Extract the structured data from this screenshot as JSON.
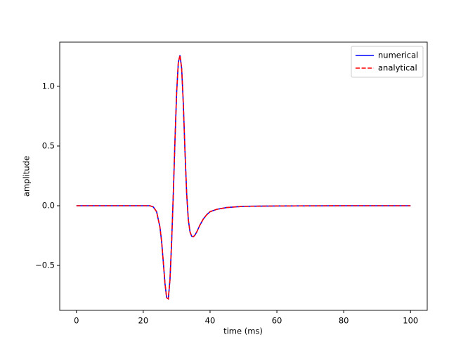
{
  "chart_data": {
    "type": "line",
    "x_label": "time (ms)",
    "y_label": "amplitude",
    "x": [
      0,
      10,
      20,
      21,
      22,
      23,
      24,
      25,
      25.5,
      26,
      26.5,
      27,
      27.5,
      28,
      28.5,
      29,
      29.5,
      30,
      30.5,
      31,
      31.5,
      32,
      32.5,
      33,
      33.5,
      34,
      34.5,
      35,
      35.5,
      36,
      37,
      38,
      39,
      40,
      42,
      45,
      50,
      60,
      80,
      100
    ],
    "series": [
      {
        "name": "numerical",
        "color": "#0000ff",
        "linestyle": "solid",
        "values": [
          0,
          0,
          0,
          0,
          0,
          -0.01,
          -0.05,
          -0.18,
          -0.3,
          -0.47,
          -0.65,
          -0.77,
          -0.78,
          -0.62,
          -0.3,
          0.1,
          0.55,
          0.95,
          1.2,
          1.26,
          1.15,
          0.85,
          0.45,
          0.1,
          -0.12,
          -0.22,
          -0.255,
          -0.26,
          -0.245,
          -0.22,
          -0.16,
          -0.11,
          -0.075,
          -0.05,
          -0.03,
          -0.015,
          -0.005,
          -0.002,
          0,
          0
        ]
      },
      {
        "name": "analytical",
        "color": "#ff0000",
        "linestyle": "dashed",
        "values": [
          0,
          0,
          0,
          0,
          0,
          -0.01,
          -0.05,
          -0.18,
          -0.3,
          -0.47,
          -0.65,
          -0.77,
          -0.78,
          -0.62,
          -0.3,
          0.1,
          0.55,
          0.95,
          1.2,
          1.26,
          1.15,
          0.85,
          0.45,
          0.1,
          -0.12,
          -0.22,
          -0.255,
          -0.26,
          -0.245,
          -0.22,
          -0.16,
          -0.11,
          -0.075,
          -0.05,
          -0.03,
          -0.015,
          -0.005,
          -0.002,
          0,
          0
        ]
      }
    ],
    "xlim": [
      -5,
      105
    ],
    "xticks": [
      0,
      20,
      40,
      60,
      80,
      100
    ],
    "ylim": [
      -0.876,
      1.37
    ],
    "yticks": [
      {
        "value": -0.5,
        "label": "−0.5"
      },
      {
        "value": 0,
        "label": "0.0"
      },
      0.5,
      {
        "value": 1,
        "label": "1.0"
      }
    ],
    "grid": false,
    "legend": "upper right"
  }
}
